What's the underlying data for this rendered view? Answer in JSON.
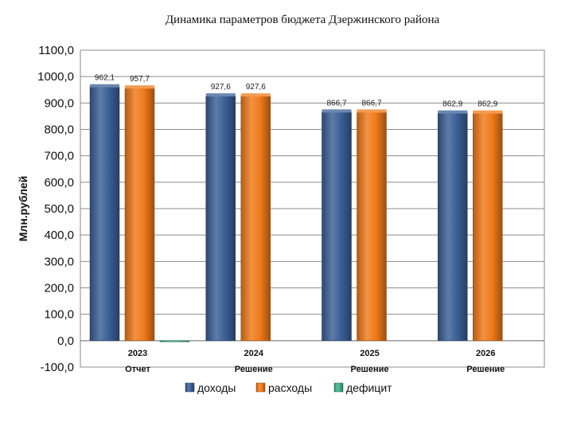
{
  "chart_data": {
    "type": "bar",
    "title": "Динамика параметров бюджета Дзержинского района",
    "xlabel": "",
    "ylabel": "Млн.рублей",
    "ylim": [
      -100,
      1100
    ],
    "ytick_step": 100,
    "ytick_labels": [
      "-100,0",
      "0,0",
      "100,0",
      "200,0",
      "300,0",
      "400,0",
      "500,0",
      "600,0",
      "700,0",
      "800,0",
      "900,0",
      "1000,0",
      "1100,0"
    ],
    "grid": true,
    "legend_position": "bottom",
    "categories": [
      {
        "year": "2023",
        "note": "Отчет"
      },
      {
        "year": "2024",
        "note": "Решение"
      },
      {
        "year": "2025",
        "note": "Решение"
      },
      {
        "year": "2026",
        "note": "Решение"
      }
    ],
    "series": [
      {
        "name": "доходы",
        "color": "#3a5f96",
        "values": [
          962.1,
          927.6,
          866.7,
          862.9
        ],
        "labels": [
          "962,1",
          "927,6",
          "866,7",
          "862,9"
        ]
      },
      {
        "name": "расходы",
        "color": "#f07a1a",
        "values": [
          957.7,
          927.6,
          866.7,
          862.9
        ],
        "labels": [
          "957,7",
          "927,6",
          "866,7",
          "862,9"
        ]
      },
      {
        "name": "дефицит",
        "color": "#3fae8a",
        "values": [
          -4.4,
          0,
          0,
          0
        ],
        "labels": [
          "",
          "",
          "",
          ""
        ]
      }
    ]
  }
}
